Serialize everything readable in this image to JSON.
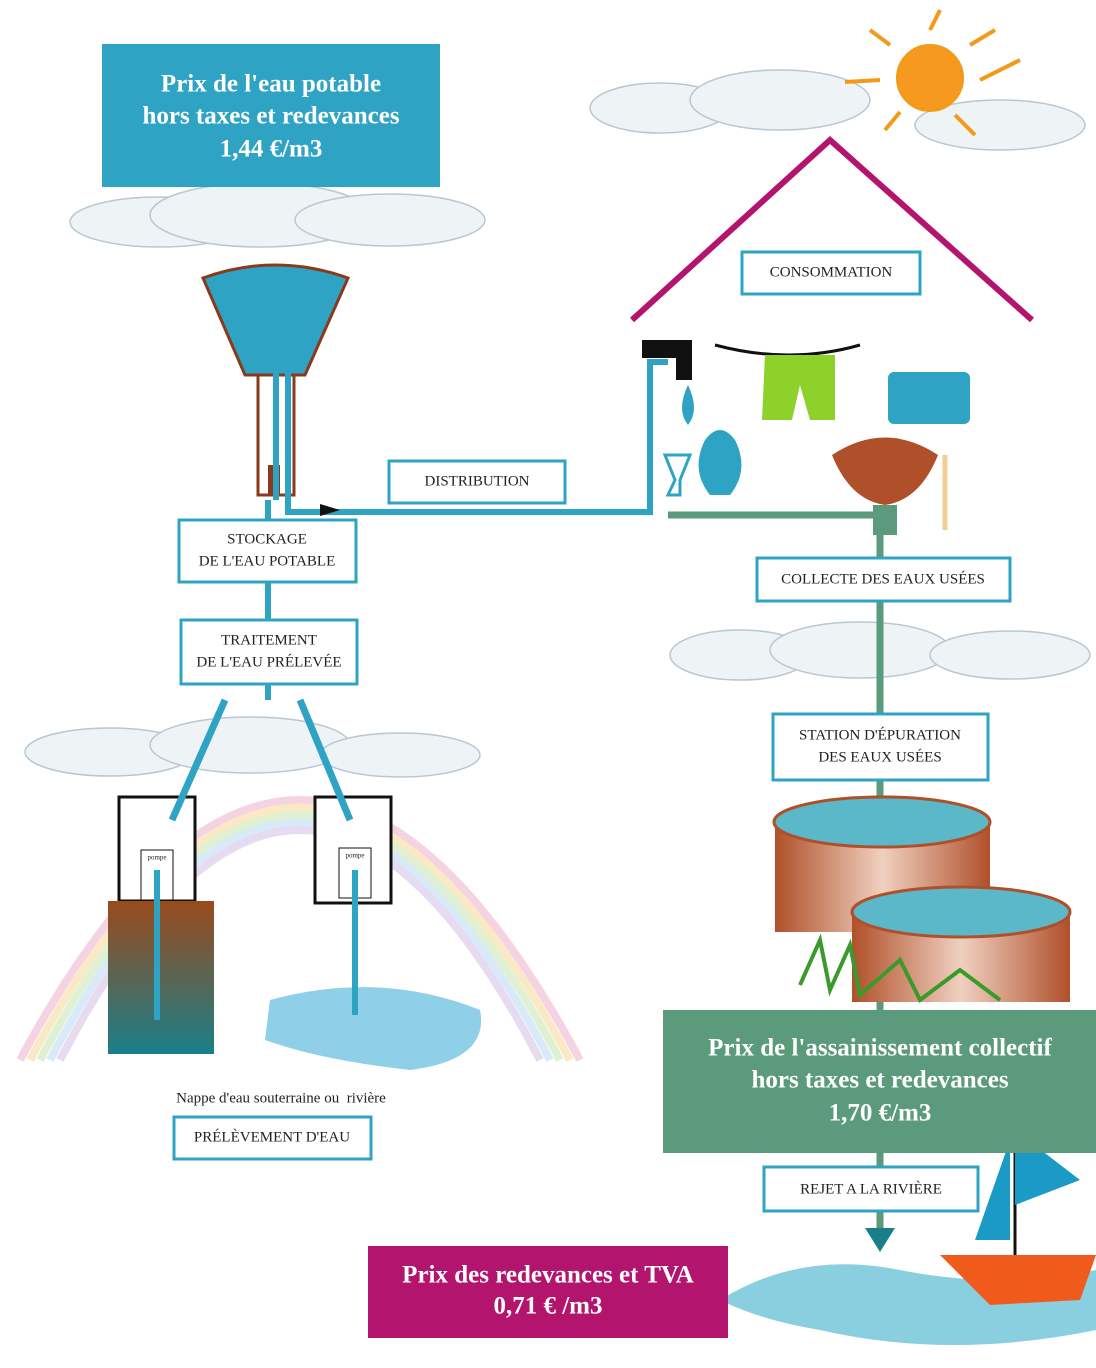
{
  "prices": [
    {
      "lines": [
        "Prix de l'eau potable",
        "hors taxes et redevances",
        "1,44 €/m3"
      ]
    },
    {
      "lines": [
        "Prix de l'assainissement collectif",
        "hors taxes et redevances",
        "1,70 €/m3"
      ]
    },
    {
      "lines": [
        "Prix des redevances et TVA",
        "0,71 € /m3"
      ]
    }
  ],
  "steps": [
    {
      "lines": [
        "CONSOMMATION"
      ]
    },
    {
      "lines": [
        "DISTRIBUTION"
      ]
    },
    {
      "lines": [
        "STOCKAGE",
        "DE L'EAU POTABLE"
      ]
    },
    {
      "lines": [
        "TRAITEMENT",
        "DE L'EAU PRÉLEVÉE"
      ]
    },
    {
      "lines": [
        "PRÉLÈVEMENT D'EAU"
      ]
    },
    {
      "lines": [
        "COLLECTE DES EAUX USÉES"
      ]
    },
    {
      "lines": [
        "STATION D'ÉPURATION",
        "DES EAUX USÉES"
      ]
    },
    {
      "lines": [
        "REJET A LA RIVIÈRE"
      ]
    }
  ],
  "pumps": [
    "pompe",
    "pompe"
  ],
  "caption": "Nappe d'eau souterraine ou  rivière"
}
